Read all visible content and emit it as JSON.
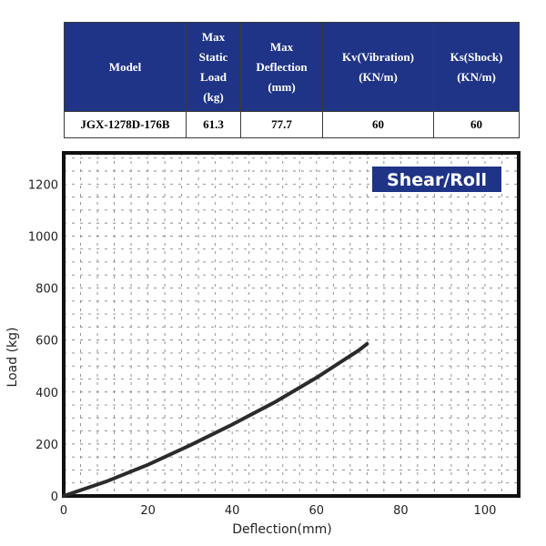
{
  "table": {
    "headers": [
      "Model",
      "Max\nStatic\nLoad\n(kg)",
      "Max\nDeflection\n(mm)",
      "Kv(Vibration)\n(KN/m)",
      "Ks(Shock)\n(KN/m)"
    ],
    "row": [
      "JGX-1278D-176B",
      "61.3",
      "77.7",
      "60",
      "60"
    ]
  },
  "colors": {
    "header_bg": "#1f3486",
    "badge_bg": "#1f3486",
    "curve": "#2b2b2b",
    "frame": "#111111",
    "grid": "#888888"
  },
  "chart_data": {
    "type": "line",
    "title": "",
    "badge": "Shear/Roll",
    "xlabel": "Deflection(mm)",
    "ylabel": "Load (kg)",
    "xlim": [
      0,
      108
    ],
    "ylim": [
      0,
      1320
    ],
    "xticks": [
      0,
      20,
      40,
      60,
      80,
      100
    ],
    "yticks": [
      0,
      200,
      400,
      600,
      800,
      1000,
      1200
    ],
    "grid": true,
    "legend": "none",
    "series": [
      {
        "x": [
          0,
          10,
          20,
          30,
          40,
          50,
          60,
          70,
          72
        ],
        "y": [
          0,
          55,
          120,
          195,
          275,
          360,
          455,
          560,
          585
        ]
      }
    ]
  }
}
